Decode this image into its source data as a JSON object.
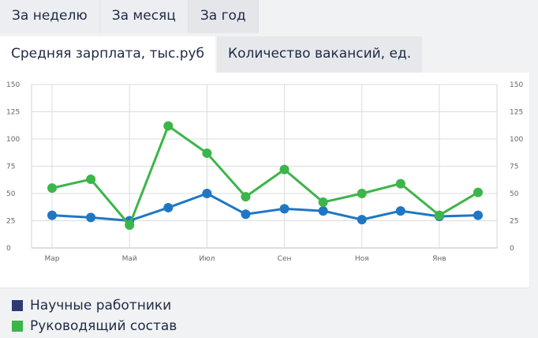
{
  "period_tabs": [
    {
      "label": "За неделю",
      "active": false
    },
    {
      "label": "За месяц",
      "active": false
    },
    {
      "label": "За год",
      "active": true
    }
  ],
  "metric_tabs": [
    {
      "label": "Средняя зарплата, тыс.руб",
      "active": true
    },
    {
      "label": "Количество вакансий, ед.",
      "active": false
    }
  ],
  "chart_data": {
    "type": "line",
    "x_tick_labels": [
      "Мар",
      "Май",
      "Июл",
      "Сен",
      "Ноя",
      "Янв"
    ],
    "ylim": [
      0,
      150
    ],
    "y_ticks": [
      "0",
      "25",
      "50",
      "75",
      "100",
      "125",
      "150"
    ],
    "grid": true,
    "series": [
      {
        "name": "Научные работники",
        "color": "#1f77c4",
        "values": [
          30,
          28,
          25,
          37,
          50,
          31,
          36,
          34,
          26,
          34,
          29,
          30
        ]
      },
      {
        "name": "Руководящий состав",
        "color": "#3cb54a",
        "values": [
          55,
          63,
          21,
          112,
          87,
          47,
          72,
          42,
          50,
          59,
          30,
          51
        ]
      }
    ]
  },
  "legend": [
    {
      "label": "Научные работники",
      "color": "#2e3b72"
    },
    {
      "label": "Руководящий состав",
      "color": "#3cb54a"
    }
  ]
}
